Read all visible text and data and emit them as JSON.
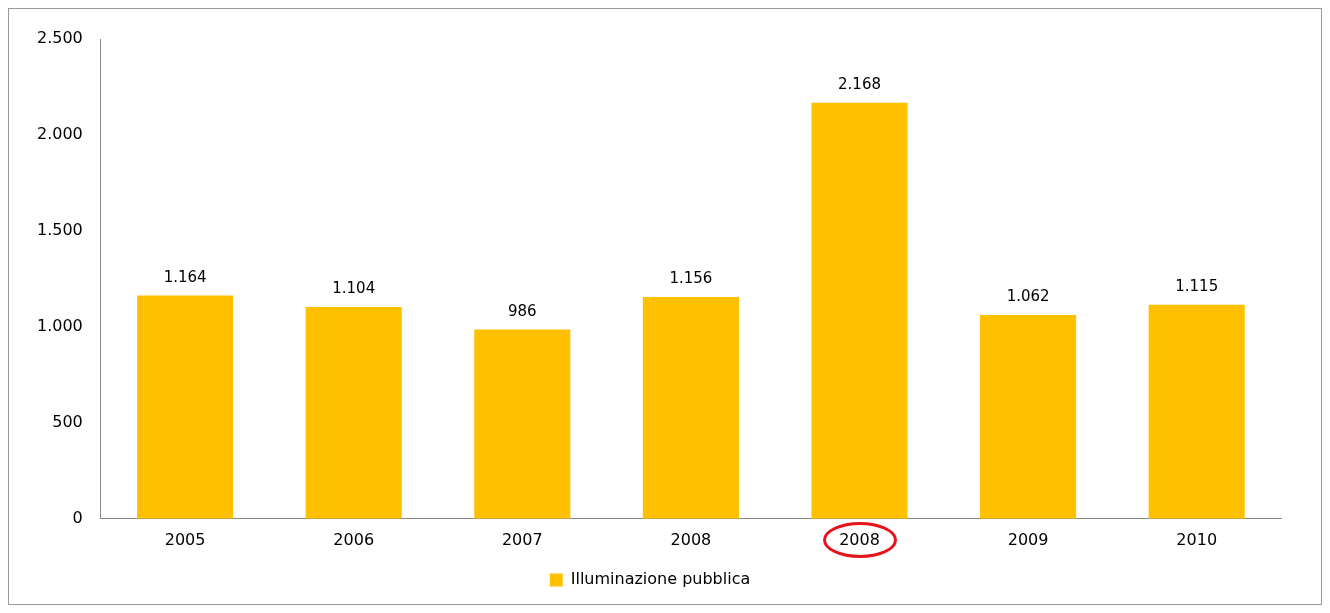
{
  "chart_data": {
    "type": "bar",
    "categories": [
      "2005",
      "2006",
      "2007",
      "2008",
      "2008",
      "2009",
      "2010"
    ],
    "series": [
      {
        "name": "Illuminazione pubblica",
        "color": "#ffc000",
        "values": [
          1164,
          1104,
          986,
          1156,
          2168,
          1062,
          1115
        ],
        "value_labels": [
          "1.164",
          "1.104",
          "986",
          "1.156",
          "2.168",
          "1.062",
          "1.115"
        ]
      }
    ],
    "ylim": [
      0,
      2500
    ],
    "yticks": [
      {
        "value": 0,
        "label": "0"
      },
      {
        "value": 500,
        "label": "500"
      },
      {
        "value": 1000,
        "label": "1.000"
      },
      {
        "value": 1500,
        "label": "1.500"
      },
      {
        "value": 2000,
        "label": "2.000"
      },
      {
        "value": 2500,
        "label": "2.500"
      }
    ],
    "grid": false,
    "legend": "bottom"
  }
}
